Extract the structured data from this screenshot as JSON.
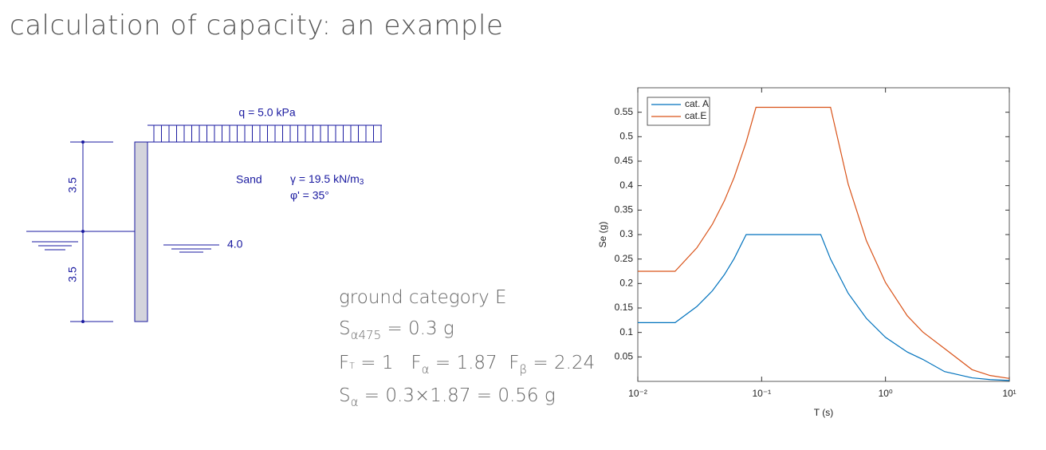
{
  "header": {
    "title": "calculation of capacity: an example"
  },
  "diagram": {
    "load": "q = 5.0 kPa",
    "dim_upper": "3.5",
    "dim_lower": "3.5",
    "soil": "Sand",
    "unit_weight": {
      "text": "γ = 19.5 kN/m",
      "sup": "3"
    },
    "friction_angle": "φ' = 35°",
    "water_depth": "4.0"
  },
  "notes": {
    "line1": "ground category E",
    "line2": {
      "s": "S",
      "sub": "α475",
      "rest": " = 0.3 g"
    },
    "line3": {
      "a": "F",
      "a_sub": "T",
      "b": " = 1   F",
      "b_sub": "α",
      "c": " = 1.87  F",
      "c_sub": "β",
      "d": " = 2.24"
    },
    "line4": {
      "s": "S",
      "sub": "α",
      "rest": " = 0.3×1.87 = 0.56 g"
    }
  },
  "chart_data": {
    "type": "line",
    "x_label": "T (s)",
    "y_label": "Se (g)",
    "xscale": "log",
    "legend": "upper left",
    "x": [
      0.01,
      0.02,
      0.03,
      0.04,
      0.05,
      0.06,
      0.075,
      0.09,
      0.1,
      0.2,
      0.3,
      0.36,
      0.5,
      0.7,
      1,
      1.5,
      2,
      3,
      5,
      7,
      10
    ],
    "series": [
      {
        "name": "cat. A",
        "color": "#0072bd",
        "values": [
          0.12,
          0.12,
          0.153,
          0.185,
          0.218,
          0.251,
          0.3,
          0.3,
          0.3,
          0.3,
          0.3,
          0.25,
          0.18,
          0.129,
          0.09,
          0.06,
          0.045,
          0.02,
          0.0072,
          0.0037,
          0.0018
        ]
      },
      {
        "name": "cat.E",
        "color": "#d95319",
        "values": [
          0.225,
          0.225,
          0.273,
          0.321,
          0.369,
          0.417,
          0.489,
          0.56,
          0.56,
          0.56,
          0.56,
          0.56,
          0.403,
          0.288,
          0.202,
          0.134,
          0.101,
          0.067,
          0.024,
          0.012,
          0.006
        ]
      }
    ],
    "xlim": [
      0.01,
      10
    ],
    "ylim": [
      0,
      0.6
    ],
    "xticks": [
      {
        "value": 0.01,
        "label": "10⁻²"
      },
      {
        "value": 0.1,
        "label": "10⁻¹"
      },
      {
        "value": 1,
        "label": "10⁰"
      },
      {
        "value": 10,
        "label": "10¹"
      }
    ],
    "yticks": [
      0.05,
      0.1,
      0.15,
      0.2,
      0.25,
      0.3,
      0.35,
      0.4,
      0.45,
      0.5,
      0.55
    ]
  }
}
